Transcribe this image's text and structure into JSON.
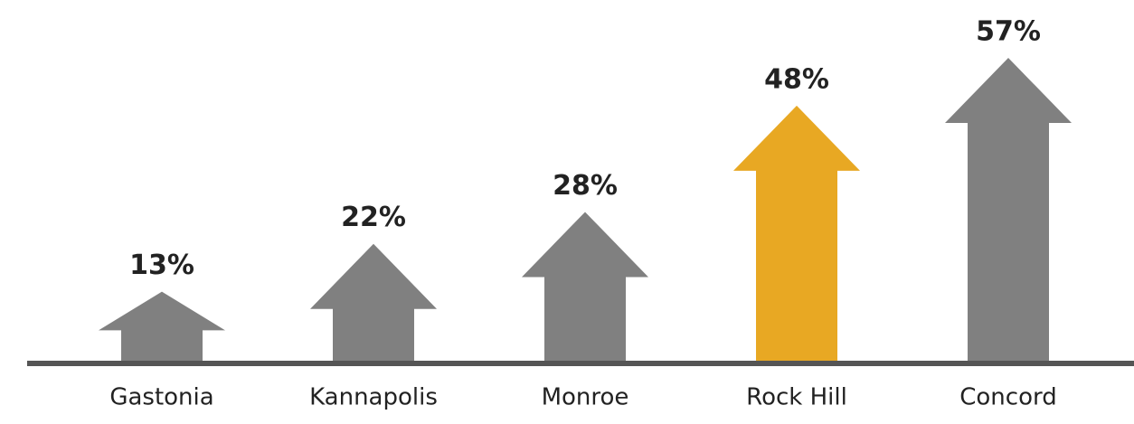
{
  "chart_data": {
    "type": "arrow-bar",
    "categories": [
      "Gastonia",
      "Kannapolis",
      "Monroe",
      "Rock Hill",
      "Concord"
    ],
    "values": [
      13,
      22,
      28,
      48,
      57
    ],
    "value_labels": [
      "13%",
      "22%",
      "28%",
      "48%",
      "57%"
    ],
    "colors": [
      "#808080",
      "#808080",
      "#808080",
      "#e8a823",
      "#808080"
    ]
  }
}
